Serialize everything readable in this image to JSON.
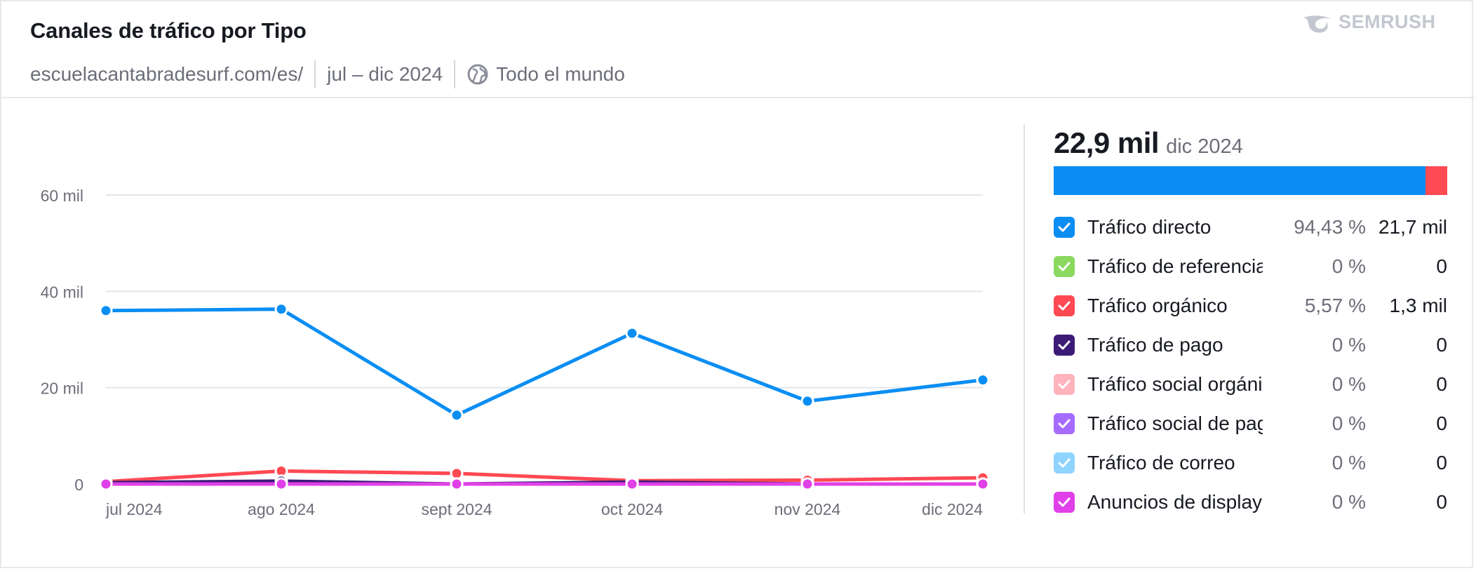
{
  "header": {
    "title": "Canales de tráfico por Tipo",
    "brand": "SEMRUSH",
    "domain": "escuelacantabradesurf.com/es/",
    "date_range": "jul – dic 2024",
    "region": "Todo el mundo"
  },
  "summary": {
    "total": "22,9 mil",
    "period": "dic 2024"
  },
  "legend": [
    {
      "name": "Tráfico directo",
      "pct": "94,43 %",
      "value": "21,7 mil",
      "color": "#0a8ef3"
    },
    {
      "name": "Tráfico de referencia",
      "pct": "0 %",
      "value": "0",
      "color": "#8bd95f"
    },
    {
      "name": "Tráfico orgánico",
      "pct": "5,57 %",
      "value": "1,3 mil",
      "color": "#ff4953"
    },
    {
      "name": "Tráfico de pago",
      "pct": "0 %",
      "value": "0",
      "color": "#3c1a78"
    },
    {
      "name": "Tráfico social orgánico",
      "pct": "0 %",
      "value": "0",
      "color": "#ffb3bd"
    },
    {
      "name": "Tráfico social de pago",
      "pct": "0 %",
      "value": "0",
      "color": "#a66bff"
    },
    {
      "name": "Tráfico de correo",
      "pct": "0 %",
      "value": "0",
      "color": "#8fd3ff"
    },
    {
      "name": "Anuncios de display",
      "pct": "0 %",
      "value": "0",
      "color": "#e040e8"
    }
  ],
  "chart_data": {
    "type": "line",
    "categories": [
      "jul 2024",
      "ago 2024",
      "sept 2024",
      "oct 2024",
      "nov 2024",
      "dic 2024"
    ],
    "yticks": [
      "0",
      "20 mil",
      "40 mil",
      "60 mil"
    ],
    "ylim": [
      0,
      60000
    ],
    "grid": true,
    "series": [
      {
        "name": "Tráfico directo",
        "color": "#0a8ef3",
        "values": [
          36000,
          36300,
          14300,
          31300,
          17200,
          21600
        ]
      },
      {
        "name": "Tráfico orgánico",
        "color": "#ff4953",
        "values": [
          500,
          2700,
          2200,
          700,
          800,
          1300
        ]
      },
      {
        "name": "Tráfico de pago",
        "color": "#3c1a78",
        "values": [
          300,
          600,
          0,
          400,
          0,
          0
        ]
      },
      {
        "name": "Anuncios de display",
        "color": "#e040e8",
        "values": [
          0,
          0,
          0,
          0,
          0,
          0
        ]
      }
    ]
  }
}
